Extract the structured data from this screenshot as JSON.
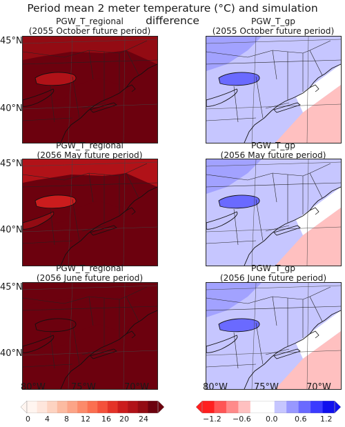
{
  "title": "Period mean 2 meter temperature (°C) and simulation difference",
  "panels": [
    {
      "name": "PGW_T_regional",
      "period": "(2055 October future period)",
      "kind": "regional",
      "mean_level": 13
    },
    {
      "name": "PGW_T_gp",
      "period": "(2055 October future period)",
      "kind": "diff"
    },
    {
      "name": "PGW_T_regional",
      "period": "(2056 May future period)",
      "kind": "regional",
      "mean_level": 12
    },
    {
      "name": "PGW_T_gp",
      "period": "(2056 May future period)",
      "kind": "diff"
    },
    {
      "name": "PGW_T_regional",
      "period": "(2056 June future period)",
      "kind": "regional",
      "mean_level": 19
    },
    {
      "name": "PGW_T_gp",
      "period": "(2056 June future period)",
      "kind": "diff"
    }
  ],
  "lat_labels": [
    "45°N",
    "40°N"
  ],
  "lon_labels": [
    "80°W",
    "75°W",
    "70°W"
  ],
  "colorbars": {
    "temperature": {
      "ticks": [
        "0",
        "4",
        "8",
        "12",
        "16",
        "20",
        "24"
      ],
      "colors": [
        "#fff5f0",
        "#fee6dc",
        "#fdd3c1",
        "#fcbba1",
        "#fca487",
        "#fc8a6a",
        "#fb6f50",
        "#f4513b",
        "#e43328",
        "#cb1c1d",
        "#b11218",
        "#930b13",
        "#6c010e"
      ]
    },
    "difference": {
      "ticks": [
        "−1.2",
        "−0.6",
        "0.0",
        "0.6",
        "1.2"
      ],
      "colors": [
        "#ff1f1f",
        "#ff5555",
        "#ff8a8a",
        "#ffc0c0",
        "#ffffff",
        "#ffffff",
        "#c6c6ff",
        "#9898ff",
        "#6a6aff",
        "#3b3bff",
        "#1010ee"
      ]
    }
  }
}
